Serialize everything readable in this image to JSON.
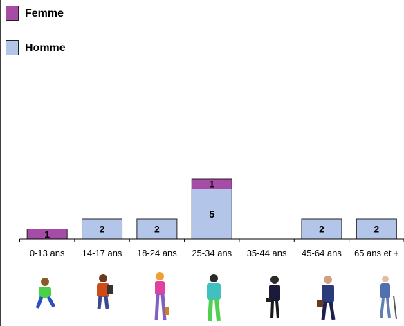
{
  "chart_data": {
    "type": "stacked_bar",
    "categories": [
      "0-13 ans",
      "14-17 ans",
      "18-24 ans",
      "25-34 ans",
      "35-44 ans",
      "45-64 ans",
      "65 ans et +"
    ],
    "series": [
      {
        "name": "Femme",
        "color": "#a64ca6",
        "values": [
          1,
          0,
          0,
          1,
          0,
          0,
          0
        ]
      },
      {
        "name": "Homme",
        "color": "#b3c6ea",
        "values": [
          0,
          2,
          2,
          5,
          0,
          2,
          2
        ]
      }
    ],
    "legend": "top-left"
  }
}
